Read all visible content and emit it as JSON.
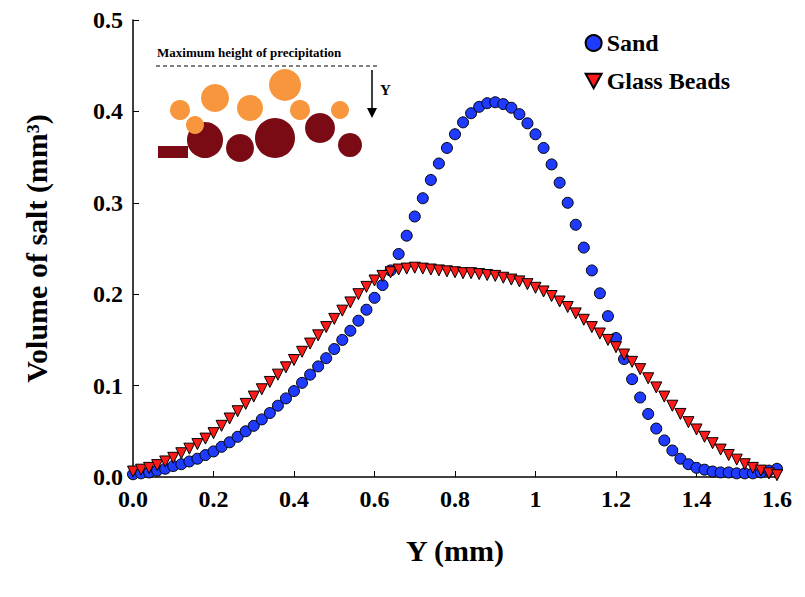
{
  "chart_data": {
    "type": "scatter",
    "x_label": "Y (mm)",
    "y_label": "Volume of salt (mm³)",
    "inset": {
      "title": "Maximum height of precipitation",
      "arrow_label": "Y"
    },
    "xlim": [
      0,
      1.6
    ],
    "xticks": [
      {
        "value": 0,
        "label": "0.0"
      },
      0.2,
      0.4,
      0.6,
      0.8,
      1.0,
      1.2,
      1.4,
      1.6
    ],
    "ylim": [
      0,
      0.5
    ],
    "yticks": [
      {
        "value": 0,
        "label": "0.0"
      },
      0.1,
      0.2,
      0.3,
      0.4,
      0.5
    ],
    "grid": false,
    "legend": "upper right",
    "x": [
      0.0,
      0.02,
      0.04,
      0.06,
      0.08,
      0.1,
      0.12,
      0.14,
      0.16,
      0.18,
      0.2,
      0.22,
      0.24,
      0.26,
      0.28,
      0.3,
      0.32,
      0.34,
      0.36,
      0.38,
      0.4,
      0.42,
      0.44,
      0.46,
      0.48,
      0.5,
      0.52,
      0.54,
      0.56,
      0.58,
      0.6,
      0.62,
      0.64,
      0.66,
      0.68,
      0.7,
      0.72,
      0.74,
      0.76,
      0.78,
      0.8,
      0.82,
      0.84,
      0.86,
      0.88,
      0.9,
      0.92,
      0.94,
      0.96,
      0.98,
      1.0,
      1.02,
      1.04,
      1.06,
      1.08,
      1.1,
      1.12,
      1.14,
      1.16,
      1.18,
      1.2,
      1.22,
      1.24,
      1.26,
      1.28,
      1.3,
      1.32,
      1.34,
      1.36,
      1.38,
      1.4,
      1.42,
      1.44,
      1.46,
      1.48,
      1.5,
      1.52,
      1.54,
      1.56,
      1.58,
      1.6
    ],
    "series": [
      {
        "name": "Sand",
        "color": "#1f3bff",
        "marker": "circle",
        "values": [
          0.003,
          0.004,
          0.005,
          0.007,
          0.009,
          0.012,
          0.014,
          0.017,
          0.02,
          0.024,
          0.028,
          0.033,
          0.038,
          0.044,
          0.05,
          0.056,
          0.063,
          0.07,
          0.078,
          0.086,
          0.094,
          0.103,
          0.112,
          0.121,
          0.13,
          0.14,
          0.15,
          0.16,
          0.171,
          0.183,
          0.196,
          0.21,
          0.226,
          0.244,
          0.264,
          0.285,
          0.305,
          0.325,
          0.343,
          0.36,
          0.375,
          0.388,
          0.398,
          0.405,
          0.409,
          0.41,
          0.408,
          0.404,
          0.397,
          0.387,
          0.375,
          0.36,
          0.342,
          0.322,
          0.3,
          0.276,
          0.251,
          0.226,
          0.201,
          0.176,
          0.152,
          0.129,
          0.107,
          0.087,
          0.069,
          0.053,
          0.04,
          0.029,
          0.02,
          0.014,
          0.01,
          0.008,
          0.006,
          0.005,
          0.005,
          0.004,
          0.004,
          0.004,
          0.005,
          0.007,
          0.009
        ]
      },
      {
        "name": "Glass Beads",
        "color": "#ff1a1a",
        "marker": "triangle-down",
        "values": [
          0.006,
          0.008,
          0.01,
          0.013,
          0.017,
          0.021,
          0.026,
          0.031,
          0.036,
          0.042,
          0.048,
          0.056,
          0.064,
          0.072,
          0.08,
          0.088,
          0.096,
          0.104,
          0.112,
          0.12,
          0.128,
          0.137,
          0.146,
          0.155,
          0.164,
          0.173,
          0.182,
          0.191,
          0.2,
          0.208,
          0.215,
          0.22,
          0.224,
          0.227,
          0.228,
          0.229,
          0.228,
          0.227,
          0.226,
          0.225,
          0.224,
          0.223,
          0.223,
          0.222,
          0.221,
          0.22,
          0.218,
          0.216,
          0.214,
          0.211,
          0.207,
          0.203,
          0.198,
          0.192,
          0.186,
          0.179,
          0.172,
          0.164,
          0.157,
          0.15,
          0.142,
          0.134,
          0.126,
          0.118,
          0.108,
          0.098,
          0.088,
          0.078,
          0.069,
          0.06,
          0.052,
          0.044,
          0.037,
          0.03,
          0.024,
          0.019,
          0.014,
          0.01,
          0.007,
          0.004,
          0.002
        ]
      }
    ]
  }
}
